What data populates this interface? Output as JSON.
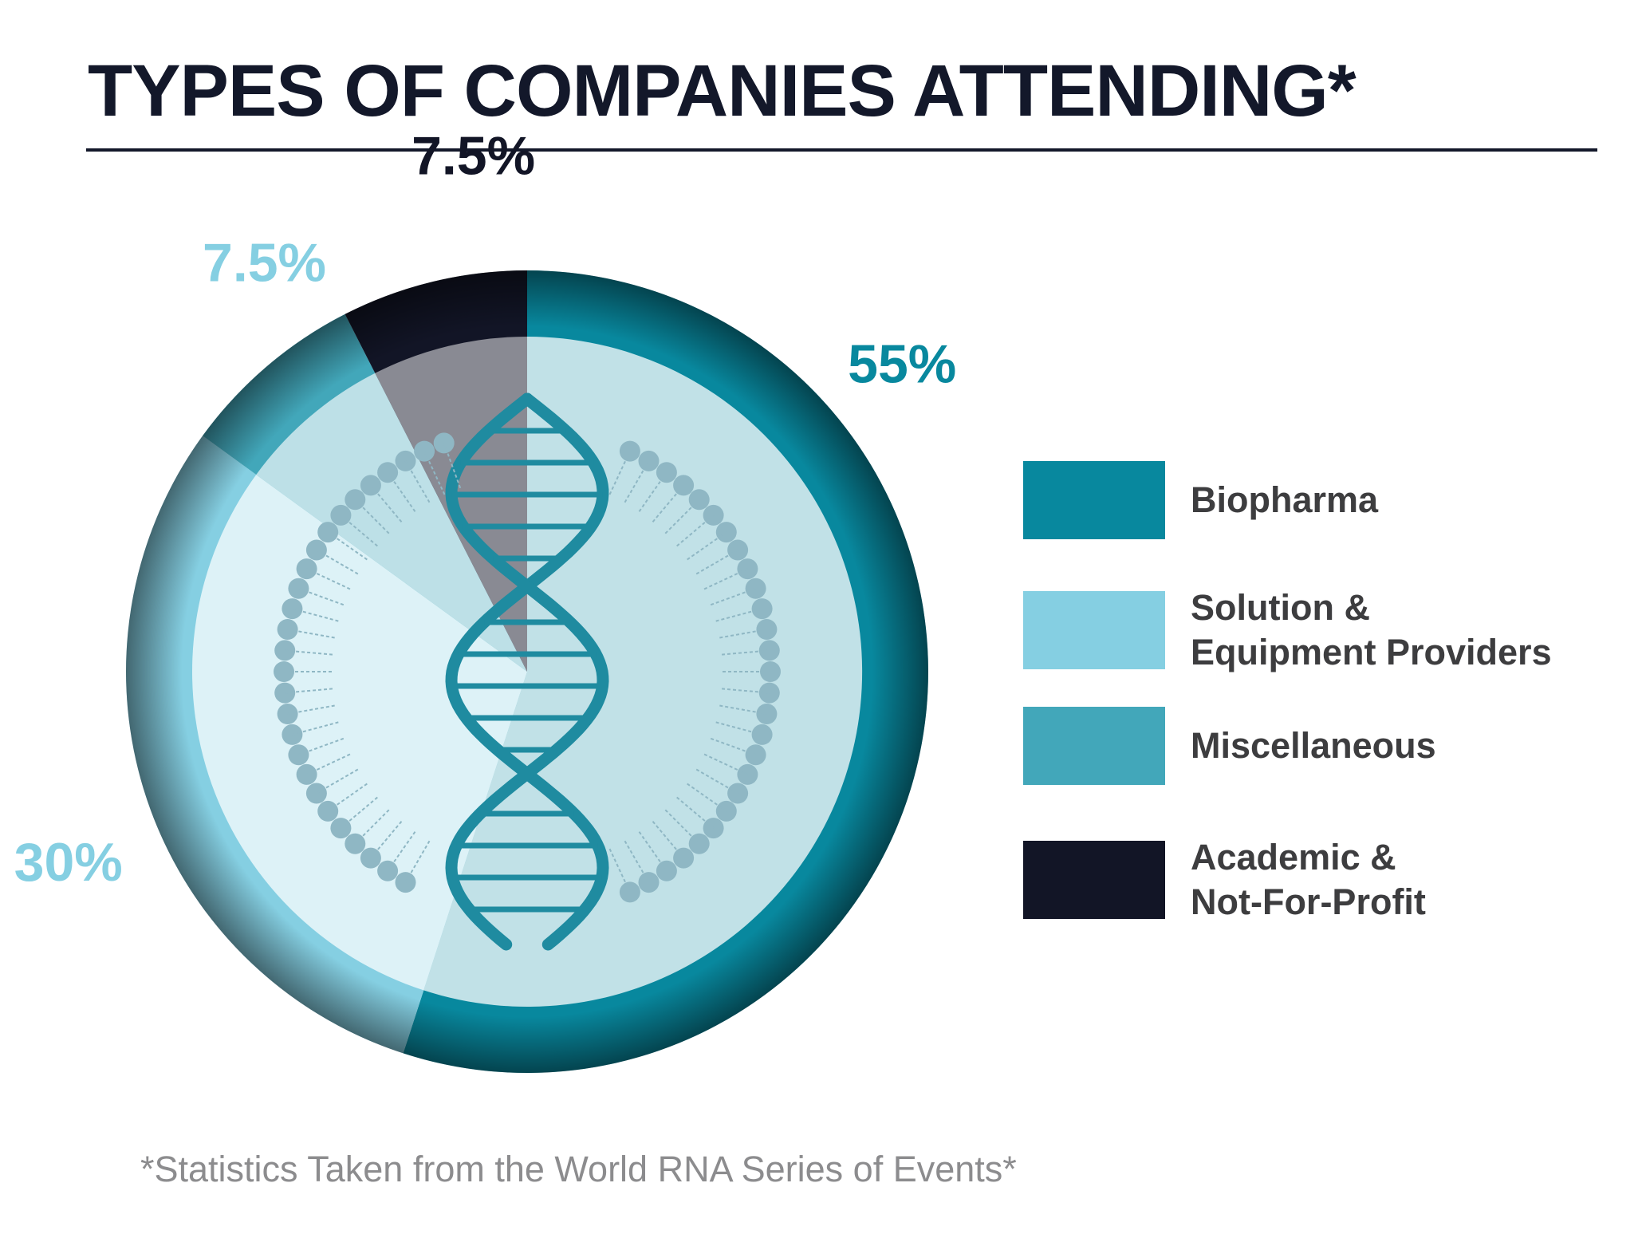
{
  "title": "TYPES OF COMPANIES ATTENDING*",
  "footnote": "*Statistics Taken from the World RNA Series of Events*",
  "colors": {
    "biopharma": "#08889e",
    "solution": "#85cfe2",
    "misc": "#42a7ba",
    "academic": "#121526",
    "title": "#13182a",
    "legend_text": "#3d3d3f",
    "footnote": "#8c8c8e"
  },
  "legend": [
    {
      "label": "Biopharma",
      "color": "#08889e"
    },
    {
      "label": "Solution &\nEquipment Providers",
      "color": "#85cfe2"
    },
    {
      "label": "Miscellaneous",
      "color": "#42a7ba"
    },
    {
      "label": "Academic &\nNot-For-Profit",
      "color": "#121526"
    }
  ],
  "chart_data": {
    "type": "pie",
    "title": "TYPES OF COMPANIES ATTENDING*",
    "slices": [
      {
        "name": "Biopharma",
        "value": 55,
        "label": "55%",
        "color": "#08889e",
        "label_color": "#08889e"
      },
      {
        "name": "Solution & Equipment Providers",
        "value": 30,
        "label": "30%",
        "color": "#85cfe2",
        "label_color": "#85cfe2"
      },
      {
        "name": "Miscellaneous",
        "value": 7.5,
        "label": "7.5%",
        "color": "#42a7ba",
        "label_color": "#85cfe2"
      },
      {
        "name": "Academic & Not-For-Profit",
        "value": 7.5,
        "label": "7.5%",
        "color": "#121526",
        "label_color": "#121526"
      }
    ],
    "start": "12 o'clock",
    "direction": "clockwise",
    "legend_position": "right",
    "decoration": "dna-helix-icon"
  }
}
